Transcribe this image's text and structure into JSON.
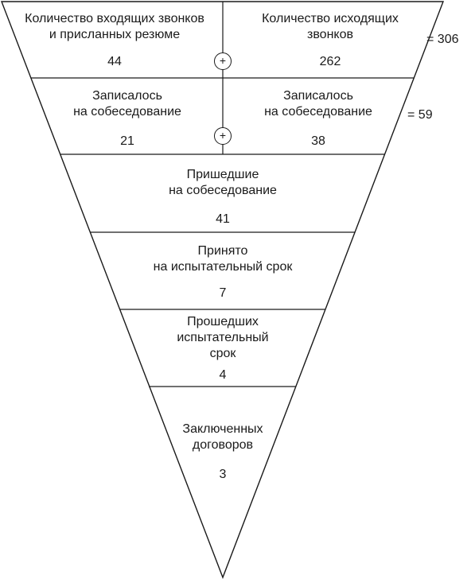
{
  "stages": {
    "incoming": {
      "label": "Количество входящих звонков\nи присланных резюме",
      "value": "44"
    },
    "outgoing": {
      "label": "Количество исходящих\nзвонков",
      "value": "262"
    },
    "signed_up_left": {
      "label": "Записалось\nна собеседование",
      "value": "21"
    },
    "signed_up_right": {
      "label": "Записалось\nна собеседование",
      "value": "38"
    },
    "came": {
      "label": "Пришедшие\nна собеседование",
      "value": "41"
    },
    "probation": {
      "label": "Принято\nна испытательный срок",
      "value": "7"
    },
    "passed": {
      "label": "Прошедших\nиспытательный\nсрок",
      "value": "4"
    },
    "contracts": {
      "label": "Заключенных\nдоговоров",
      "value": "3"
    }
  },
  "totals": {
    "row1": "= 306",
    "row2": "= 59"
  },
  "operators": {
    "plus": "+"
  },
  "colors": {
    "line": "#1a1a1a",
    "background": "#ffffff"
  }
}
